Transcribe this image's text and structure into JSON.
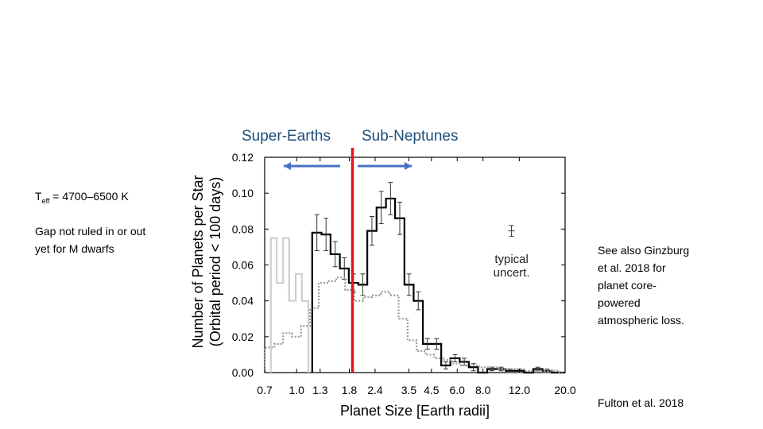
{
  "slide": {
    "label_super": "Super-Earths",
    "label_sub": "Sub-Neptunes",
    "teff_main": "T",
    "teff_sub": "eff",
    "teff_rest": " = 4700–6500 K",
    "gap_note_line1": "Gap not ruled in or out",
    "gap_note_line2": "yet for M dwarfs",
    "ginzburg_lines": [
      "See also Ginzburg",
      "et al. 2018 for",
      "planet core-",
      "powered",
      "atmospheric loss."
    ],
    "citation": "Fulton et al. 2018",
    "colors": {
      "arrow": "#4472c4",
      "gap_line": "#e8141b",
      "label": "#1f4e79"
    }
  },
  "chart_data": {
    "type": "step-histogram",
    "title": "",
    "xlabel": "Planet Size [Earth radii]",
    "ylabel_line1": "Number of Planets per Star",
    "ylabel_line2": "(Orbital period < 100 days)",
    "xscale": "log",
    "xlim": [
      0.7,
      20.0
    ],
    "ylim": [
      0.0,
      0.12
    ],
    "x_ticks": [
      {
        "value": 0.7,
        "label": "0.7"
      },
      {
        "value": 1.0,
        "label": "1.0"
      },
      {
        "value": 1.3,
        "label": "1.3"
      },
      {
        "value": 1.8,
        "label": "1.8"
      },
      {
        "value": 2.4,
        "label": "2.4"
      },
      {
        "value": 3.5,
        "label": "3.5"
      },
      {
        "value": 4.5,
        "label": "4.5"
      },
      {
        "value": 6.0,
        "label": "6.0"
      },
      {
        "value": 8.0,
        "label": "8.0"
      },
      {
        "value": 12.0,
        "label": "12.0"
      },
      {
        "value": 20.0,
        "label": "20.0"
      }
    ],
    "y_ticks": [
      {
        "value": 0.0,
        "label": "0.00"
      },
      {
        "value": 0.02,
        "label": "0.02"
      },
      {
        "value": 0.04,
        "label": "0.04"
      },
      {
        "value": 0.06,
        "label": "0.06"
      },
      {
        "value": 0.08,
        "label": "0.08"
      },
      {
        "value": 0.1,
        "label": "0.10"
      },
      {
        "value": 0.12,
        "label": "0.12"
      }
    ],
    "annotation": [
      "typical",
      "uncert."
    ],
    "annotation_pos": {
      "x": 11.0,
      "y": 0.061
    },
    "typical_uncert_bar": {
      "x": 11.0,
      "y": 0.079,
      "err": 0.003
    },
    "gap_marker_x": 1.8,
    "series": [
      {
        "name": "completeness-corrected (black)",
        "style": "solid-black",
        "x_edges": [
          1.19,
          1.32,
          1.46,
          1.62,
          1.79,
          1.99,
          2.2,
          2.44,
          2.71,
          3.0,
          3.33,
          3.69,
          4.09,
          4.53,
          5.02,
          5.56,
          6.17,
          6.83,
          7.57,
          8.39,
          9.3,
          10.31,
          11.42,
          12.66,
          14.02,
          15.54,
          17.22,
          19.08,
          20.0
        ],
        "values": [
          0.078,
          0.077,
          0.066,
          0.058,
          0.05,
          0.049,
          0.079,
          0.092,
          0.097,
          0.086,
          0.049,
          0.04,
          0.016,
          0.016,
          0.004,
          0.008,
          0.006,
          0.003,
          0.0,
          0.002,
          0.002,
          0.001,
          0.001,
          0.0,
          0.002,
          0.001,
          0.0,
          0.0
        ],
        "errors": [
          0.01,
          0.009,
          0.007,
          0.006,
          0.005,
          0.006,
          0.008,
          0.009,
          0.009,
          0.009,
          0.006,
          0.005,
          0.003,
          0.003,
          0.002,
          0.002,
          0.002,
          0.002,
          0.0,
          0.001,
          0.001,
          0.001,
          0.001,
          0.0,
          0.001,
          0.001,
          0.0,
          0.0
        ]
      },
      {
        "name": "raw counts (dotted gray)",
        "style": "dotted-gray",
        "x_edges": [
          0.7,
          0.78,
          0.86,
          0.95,
          1.05,
          1.16,
          1.28,
          1.41,
          1.56,
          1.72,
          1.9,
          2.1,
          2.32,
          2.56,
          2.83,
          3.12,
          3.45,
          3.81,
          4.21,
          4.65,
          5.14,
          5.68,
          6.27,
          6.93,
          7.66,
          8.46,
          9.35,
          10.33,
          11.41,
          12.61,
          13.93,
          15.39,
          17.0,
          18.79,
          20.0
        ],
        "values": [
          0.014,
          0.016,
          0.022,
          0.02,
          0.026,
          0.036,
          0.05,
          0.051,
          0.053,
          0.046,
          0.04,
          0.042,
          0.043,
          0.045,
          0.043,
          0.03,
          0.018,
          0.012,
          0.01,
          0.008,
          0.007,
          0.005,
          0.004,
          0.004,
          0.003,
          0.003,
          0.002,
          0.002,
          0.002,
          0.001,
          0.001,
          0.001,
          0.001,
          0.0
        ]
      },
      {
        "name": "incompleteness-limited region (light gray)",
        "style": "solid-lightgray",
        "x_edges": [
          0.75,
          0.8,
          0.86,
          0.92,
          0.99,
          1.06,
          1.14
        ],
        "values": [
          0.075,
          0.05,
          0.075,
          0.04,
          0.055,
          0.04
        ]
      }
    ]
  }
}
